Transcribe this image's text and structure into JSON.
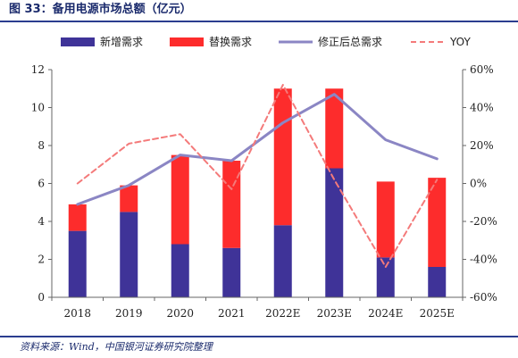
{
  "figure": {
    "title": "图 33：备用电源市场总额（亿元）",
    "source": "资料来源：Wind，中国银河证券研究院整理"
  },
  "chart_data": {
    "type": "bar",
    "stacked": true,
    "categories": [
      "2018",
      "2019",
      "2020",
      "2021",
      "2022E",
      "2023E",
      "2024E",
      "2025E"
    ],
    "series": [
      {
        "name": "新增需求",
        "kind": "bar",
        "axis": "left",
        "color": "#3f3398",
        "values": [
          3.5,
          4.5,
          2.8,
          2.6,
          3.8,
          6.8,
          2.1,
          1.6
        ]
      },
      {
        "name": "替换需求",
        "kind": "bar",
        "axis": "left",
        "color": "#fd2c2c",
        "values": [
          1.4,
          1.4,
          4.7,
          4.6,
          7.2,
          4.2,
          4.0,
          4.7
        ]
      },
      {
        "name": "修正后总需求",
        "kind": "line",
        "axis": "left",
        "color": "#8b86c4",
        "values": [
          4.9,
          5.9,
          7.5,
          7.2,
          9.2,
          10.7,
          8.3,
          7.3
        ]
      },
      {
        "name": "YOY",
        "kind": "line",
        "style": "dashed",
        "axis": "right",
        "color": "#f47a7a",
        "values": [
          0,
          21,
          26,
          -3,
          52,
          2,
          -44,
          2
        ]
      }
    ],
    "y_left": {
      "min": 0,
      "max": 12,
      "step": 2,
      "ticks": [
        "0",
        "2",
        "4",
        "6",
        "8",
        "10",
        "12"
      ]
    },
    "y_right": {
      "min": -60,
      "max": 60,
      "step": 20,
      "ticks": [
        "-60%",
        "-40%",
        "-20%",
        "0%",
        "20%",
        "40%",
        "60%"
      ]
    },
    "legend_position": "top",
    "grid": false
  }
}
